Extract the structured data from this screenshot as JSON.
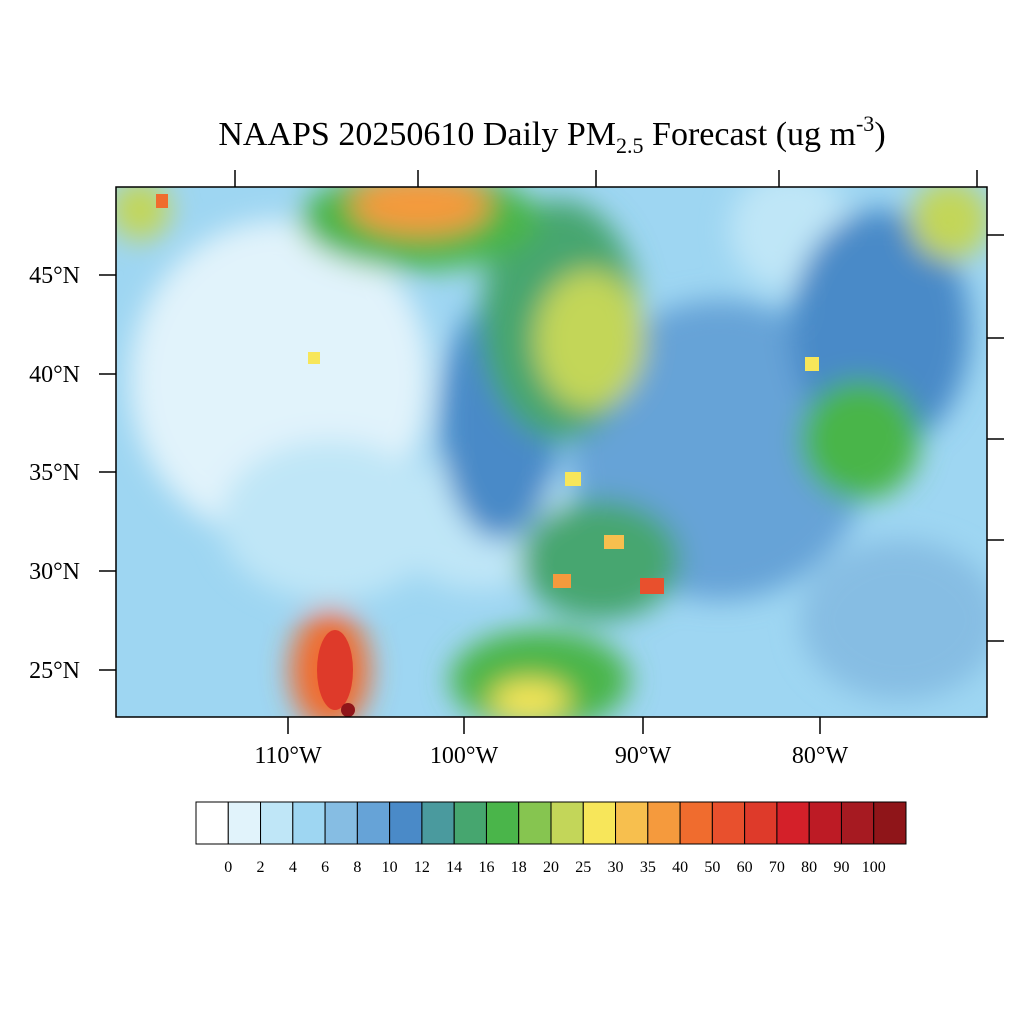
{
  "title": {
    "main": "NAAPS 20250610 Daily PM",
    "sub": "2.5",
    "mid": " Forecast (ug m",
    "sup": "-3",
    "end": ")"
  },
  "lat_labels": [
    "45°N",
    "40°N",
    "35°N",
    "30°N",
    "25°N"
  ],
  "lon_labels": [
    "110°W",
    "100°W",
    "90°W",
    "80°W"
  ],
  "colorbar": {
    "levels": [
      0,
      2,
      4,
      6,
      8,
      10,
      12,
      14,
      16,
      18,
      20,
      25,
      30,
      35,
      40,
      50,
      60,
      70,
      80,
      90,
      100
    ],
    "colors": [
      "#ffffff",
      "#e1f3fb",
      "#bfe6f7",
      "#9ed6f2",
      "#86bde3",
      "#66a3d7",
      "#4a8ac8",
      "#4a9a9e",
      "#46a66f",
      "#4ab54a",
      "#86c550",
      "#c3d659",
      "#f7e65a",
      "#f7bf4e",
      "#f59a3d",
      "#f06c2e",
      "#e8502d",
      "#de3a2a",
      "#d42029",
      "#bd1b25",
      "#a61a21",
      "#8f1519"
    ]
  }
}
